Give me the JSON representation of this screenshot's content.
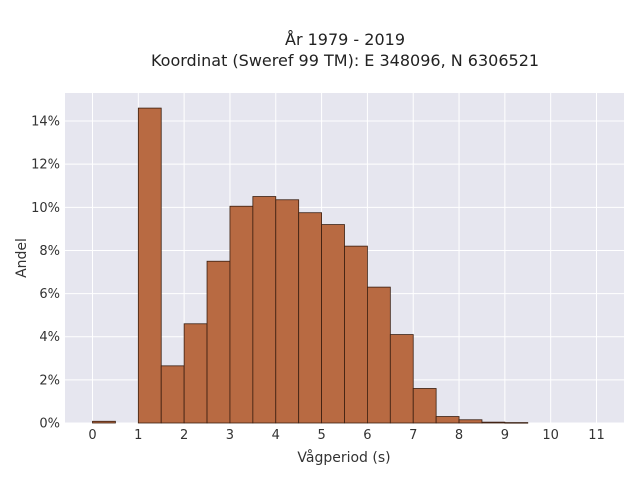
{
  "chart_data": {
    "type": "bar",
    "title_line1": "År 1979 - 2019",
    "title_line2": "Koordinat (Sweref 99 TM): E 348096, N 6306521",
    "xlabel": "Vågperiod (s)",
    "ylabel": "Andel",
    "bin_width": 0.5,
    "bins": [
      {
        "start": 0.0,
        "value": 0.08
      },
      {
        "start": 0.5,
        "value": 0.0
      },
      {
        "start": 1.0,
        "value": 14.6
      },
      {
        "start": 1.5,
        "value": 2.65
      },
      {
        "start": 2.0,
        "value": 4.6
      },
      {
        "start": 2.5,
        "value": 7.5
      },
      {
        "start": 3.0,
        "value": 10.05
      },
      {
        "start": 3.5,
        "value": 10.5
      },
      {
        "start": 4.0,
        "value": 10.35
      },
      {
        "start": 4.5,
        "value": 9.75
      },
      {
        "start": 5.0,
        "value": 9.2
      },
      {
        "start": 5.5,
        "value": 8.2
      },
      {
        "start": 6.0,
        "value": 6.3
      },
      {
        "start": 6.5,
        "value": 4.1
      },
      {
        "start": 7.0,
        "value": 1.6
      },
      {
        "start": 7.5,
        "value": 0.3
      },
      {
        "start": 8.0,
        "value": 0.15
      },
      {
        "start": 8.5,
        "value": 0.04
      },
      {
        "start": 9.0,
        "value": 0.02
      }
    ],
    "xlim": [
      -0.6,
      11.6
    ],
    "ylim": [
      0,
      15.3
    ],
    "x_ticks": [
      {
        "value": 0,
        "label": "0"
      },
      {
        "value": 1,
        "label": "1"
      },
      {
        "value": 2,
        "label": "2"
      },
      {
        "value": 3,
        "label": "3"
      },
      {
        "value": 4,
        "label": "4"
      },
      {
        "value": 5,
        "label": "5"
      },
      {
        "value": 6,
        "label": "6"
      },
      {
        "value": 7,
        "label": "7"
      },
      {
        "value": 8,
        "label": "8"
      },
      {
        "value": 9,
        "label": "9"
      },
      {
        "value": 10,
        "label": "10"
      },
      {
        "value": 11,
        "label": "11"
      }
    ],
    "y_ticks": [
      {
        "value": 0,
        "label": "0%"
      },
      {
        "value": 2,
        "label": "2%"
      },
      {
        "value": 4,
        "label": "4%"
      },
      {
        "value": 6,
        "label": "6%"
      },
      {
        "value": 8,
        "label": "8%"
      },
      {
        "value": 10,
        "label": "10%"
      },
      {
        "value": 12,
        "label": "12%"
      },
      {
        "value": 14,
        "label": "14%"
      }
    ],
    "grid": true,
    "colors": {
      "bar_fill": "#b86a42",
      "bar_stroke": "#3a1e10",
      "plot_bg": "#e6e6ef",
      "grid": "#ffffff"
    }
  }
}
